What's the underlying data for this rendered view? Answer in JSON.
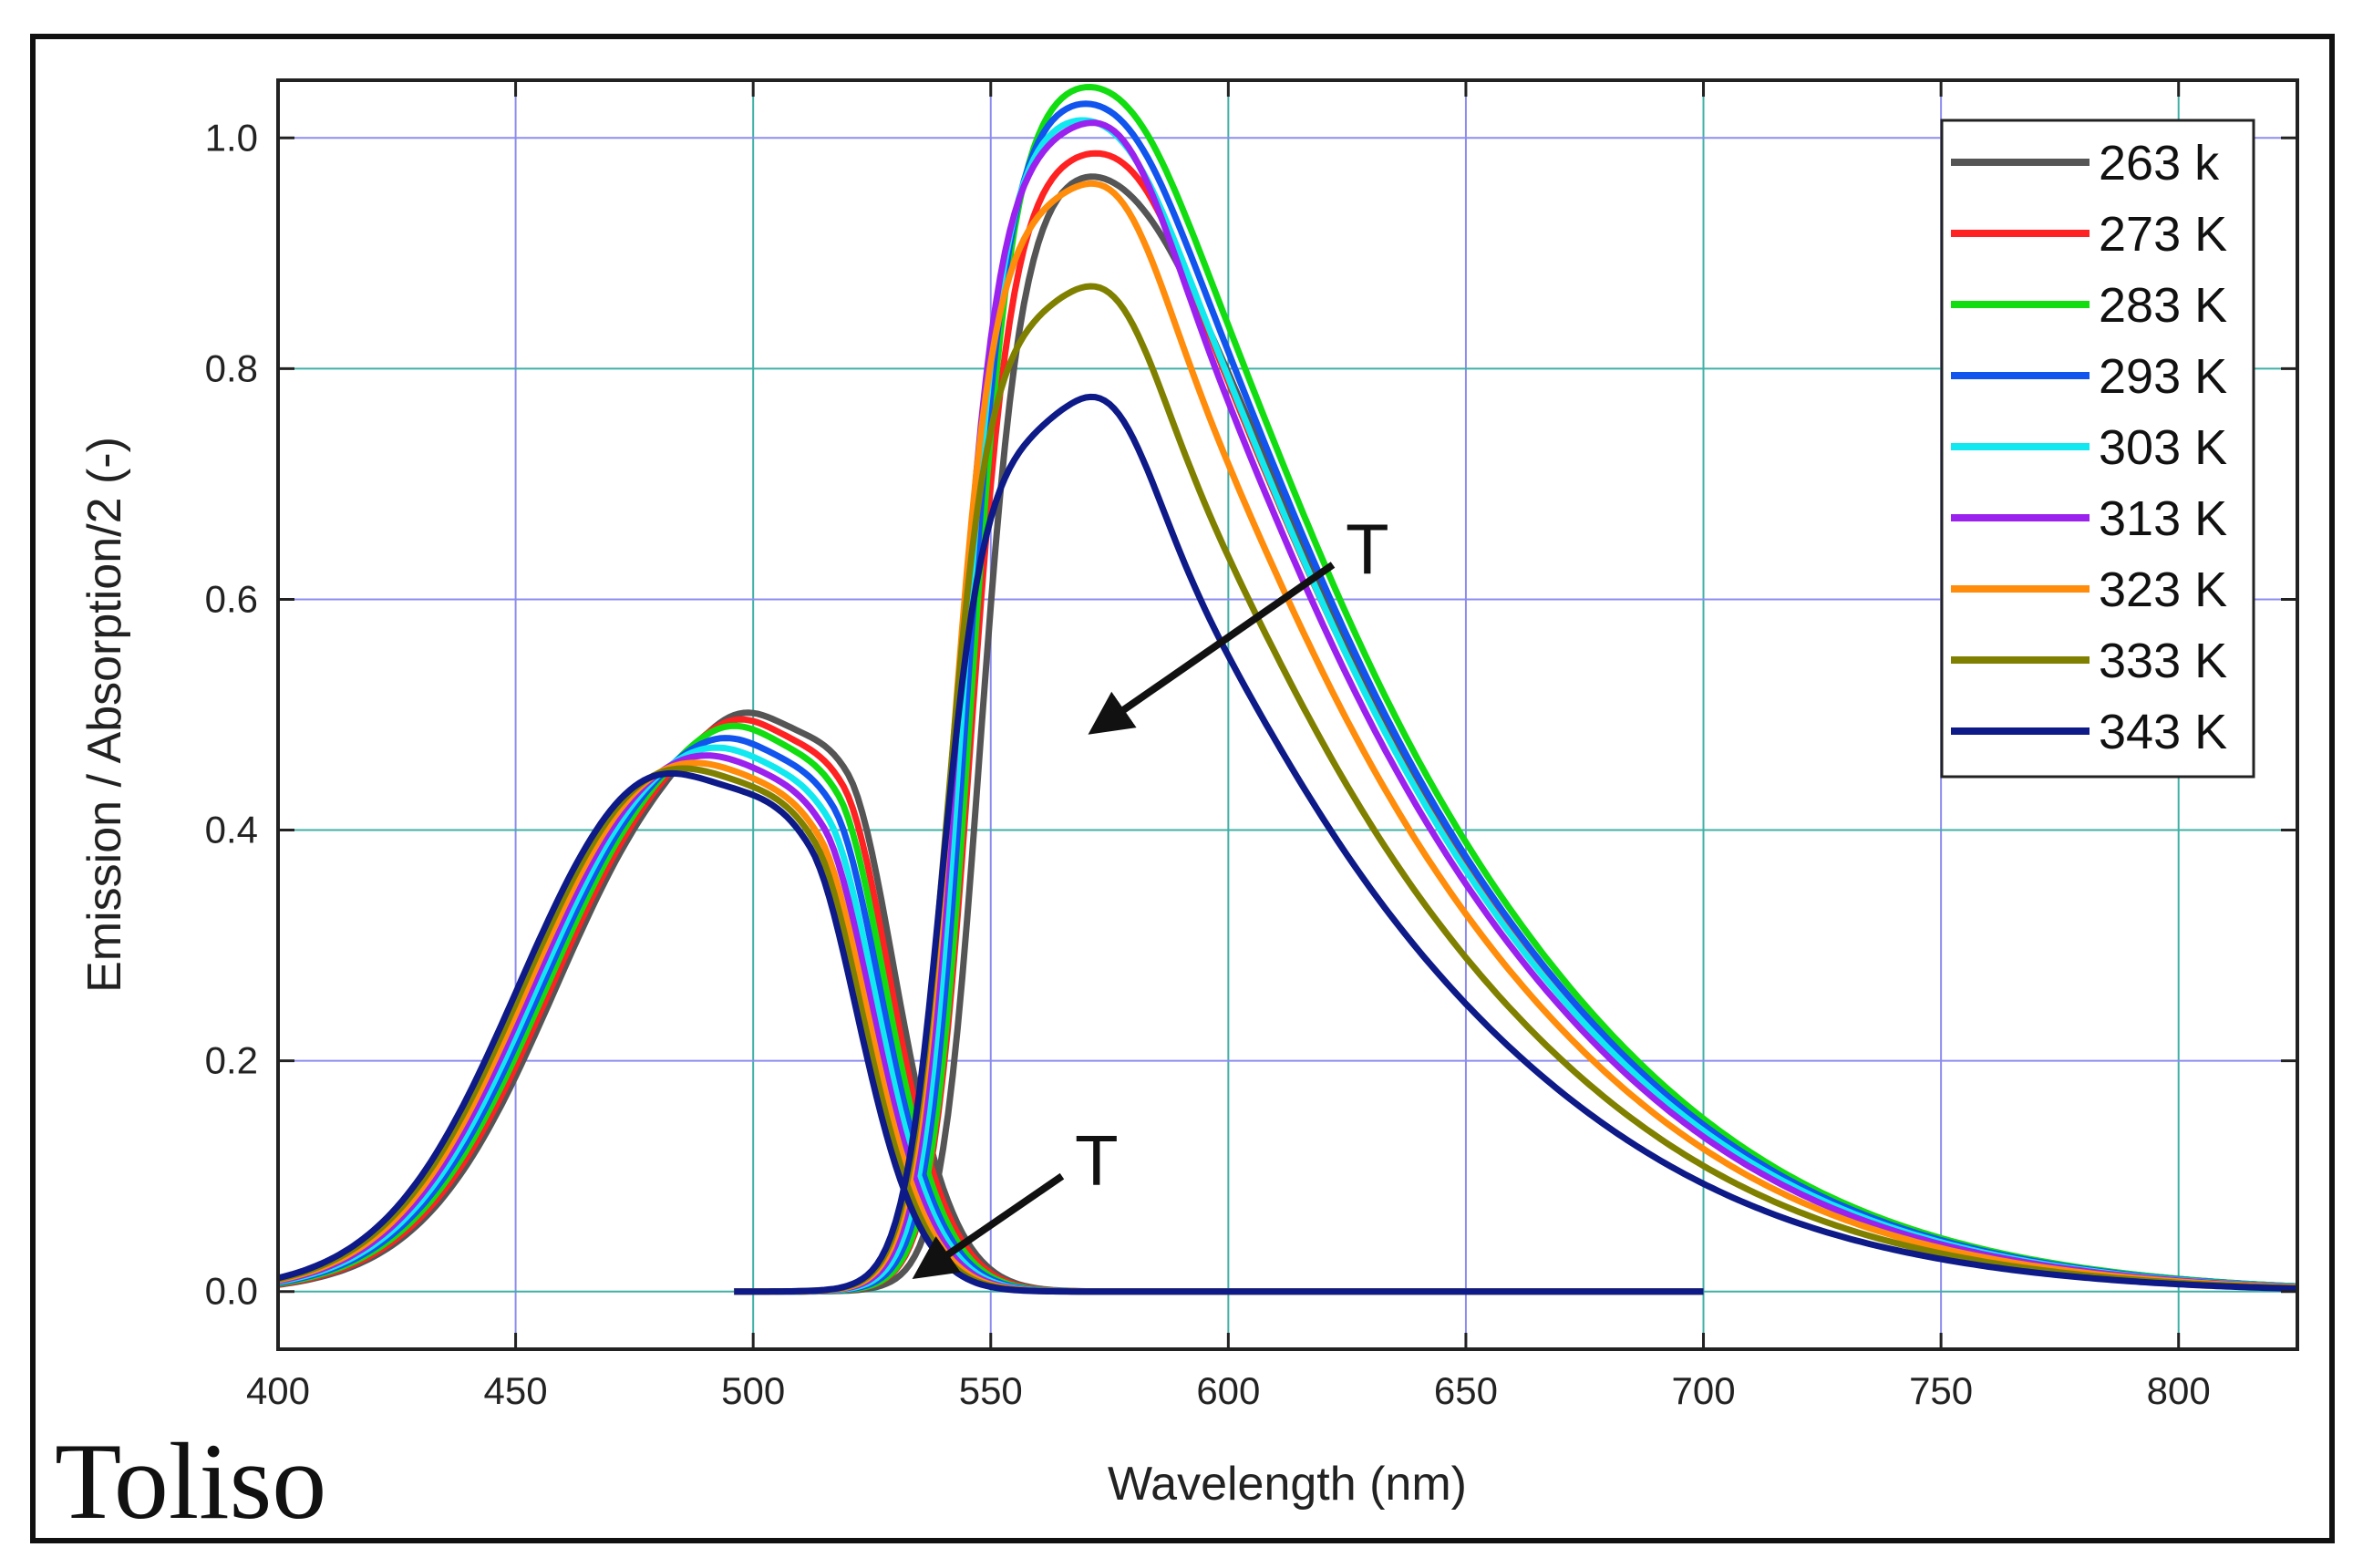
{
  "chart_data": {
    "type": "line",
    "xlabel": "Wavelength (nm)",
    "ylabel": "Emission / Absorption/2 (-)",
    "xlim": [
      400,
      825
    ],
    "ylim": [
      -0.05,
      1.05
    ],
    "xticks": [
      400,
      450,
      500,
      550,
      600,
      650,
      700,
      750,
      800
    ],
    "xtick_labels": [
      "400",
      "450",
      "500",
      "550",
      "600",
      "650",
      "700",
      "750",
      "800"
    ],
    "yticks": [
      0.0,
      0.2,
      0.4,
      0.6,
      0.8,
      1.0
    ],
    "ytick_labels": [
      "0.0",
      "0.2",
      "0.4",
      "0.6",
      "0.8",
      "1.0"
    ],
    "grid": true,
    "legend_position": "top-right",
    "panel_label": "Toliso",
    "annotations": [
      {
        "text": "T",
        "from": [
          622,
          0.63
        ],
        "to": [
          573,
          0.49
        ]
      },
      {
        "text": "T",
        "from": [
          565,
          0.1
        ],
        "to": [
          536,
          0.018
        ]
      }
    ],
    "series": [
      {
        "name": "263 k",
        "color": "#555555",
        "abs_peaks": [
          0.5,
          0.5
        ],
        "shift": 0,
        "em_peak": 0.93,
        "em_sh": 0.77,
        "em_shift": 2
      },
      {
        "name": "273 K",
        "color": "#ff2222",
        "abs_peaks": [
          0.495,
          0.49
        ],
        "shift": -1,
        "em_peak": 0.94,
        "em_sh": 0.8,
        "em_shift": 0
      },
      {
        "name": "283 K",
        "color": "#11dd11",
        "abs_peaks": [
          0.49,
          0.482
        ],
        "shift": -2,
        "em_peak": 1.0,
        "em_sh": 0.84,
        "em_shift": 0
      },
      {
        "name": "293 K",
        "color": "#1155ee",
        "abs_peaks": [
          0.48,
          0.472
        ],
        "shift": -3,
        "em_peak": 0.985,
        "em_sh": 0.83,
        "em_shift": -1
      },
      {
        "name": "303 K",
        "color": "#11e8f0",
        "abs_peaks": [
          0.472,
          0.462
        ],
        "shift": -4,
        "em_peak": 0.97,
        "em_sh": 0.82,
        "em_shift": -2
      },
      {
        "name": "313 K",
        "color": "#9b22ee",
        "abs_peaks": [
          0.465,
          0.455
        ],
        "shift": -5,
        "em_peak": 0.955,
        "em_sh": 0.83,
        "em_shift": -3
      },
      {
        "name": "323 K",
        "color": "#ff8c0a",
        "abs_peaks": [
          0.458,
          0.448
        ],
        "shift": -6,
        "em_peak": 0.9,
        "em_sh": 0.79,
        "em_shift": -4
      },
      {
        "name": "333 K",
        "color": "#808000",
        "abs_peaks": [
          0.452,
          0.444
        ],
        "shift": -7,
        "em_peak": 0.81,
        "em_sh": 0.72,
        "em_shift": -5
      },
      {
        "name": "343 K",
        "color": "#0d1a88",
        "abs_peaks": [
          0.446,
          0.44
        ],
        "shift": -8,
        "em_peak": 0.71,
        "em_sh": 0.645,
        "em_shift": -6
      }
    ]
  }
}
